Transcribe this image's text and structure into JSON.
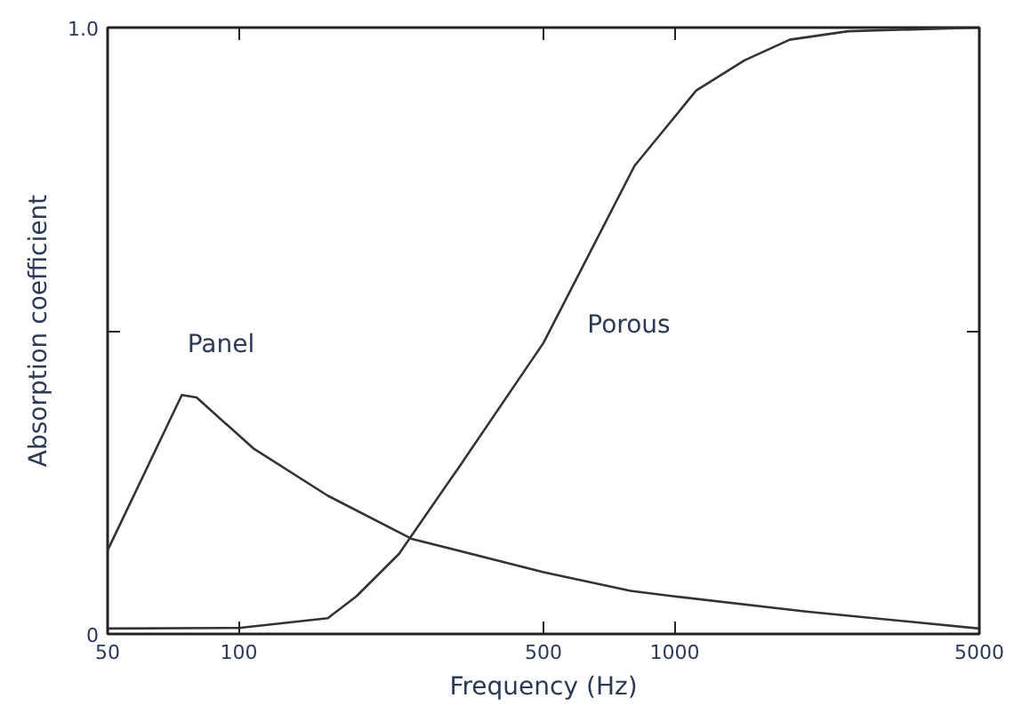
{
  "chart_data": {
    "type": "line",
    "xlabel": "Frequency (Hz)",
    "ylabel": "Absorption coefficient",
    "log": "x",
    "grid": false,
    "marker": "none",
    "line_style": "solid",
    "xlim": [
      50,
      5000
    ],
    "xticks": [
      50,
      100,
      500,
      1000,
      5000
    ],
    "ylim": [
      0,
      1
    ],
    "yticks": [
      0,
      {
        "value": 0.5,
        "label": null
      },
      {
        "value": 1,
        "label": "1.0"
      }
    ],
    "series": [
      {
        "name": "Panel",
        "color": "#333333",
        "x": [
          50,
          74,
          80,
          108,
          160,
          249,
          500,
          792,
          1000,
          2000,
          5000
        ],
        "values": [
          0.138,
          0.394,
          0.39,
          0.306,
          0.228,
          0.157,
          0.102,
          0.071,
          0.062,
          0.037,
          0.009
        ]
      },
      {
        "name": "Porous",
        "color": "#333333",
        "x": [
          50,
          100,
          160,
          186,
          233,
          322,
          500,
          809,
          1120,
          1446,
          1837,
          2500,
          5000
        ],
        "values": [
          0.009,
          0.01,
          0.026,
          0.062,
          0.132,
          0.278,
          0.48,
          0.772,
          0.896,
          0.946,
          0.98,
          0.994,
          1.0
        ]
      }
    ]
  }
}
